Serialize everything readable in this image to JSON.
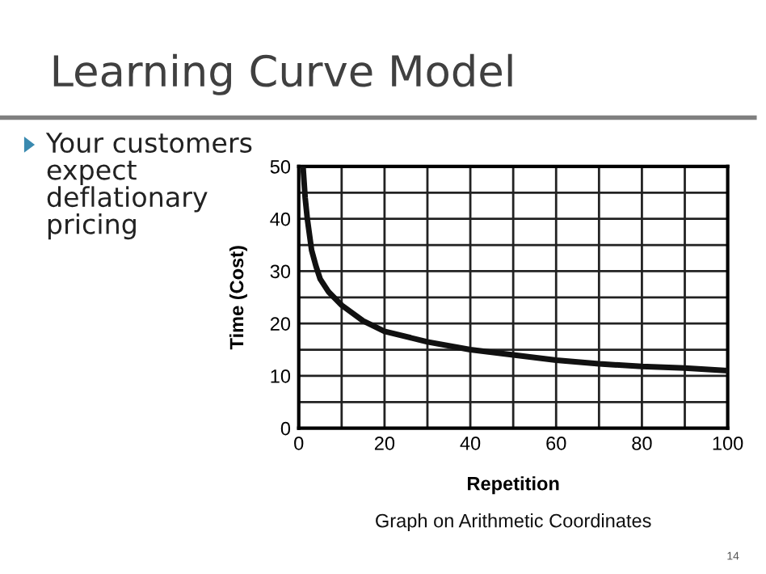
{
  "chart_data": {
    "type": "line",
    "title": "Learning Curve Model",
    "xlabel": "Repetition",
    "ylabel": "Time (Cost)",
    "annotations": [
      "Your customers expect deflationary pricing",
      "Graph on Arithmetic Coordinates",
      "14"
    ],
    "x": [
      1,
      1.5,
      2,
      3,
      4,
      5,
      7,
      10,
      15,
      20,
      30,
      40,
      50,
      60,
      70,
      80,
      90,
      100
    ],
    "series": [
      {
        "color": "#111111",
        "values": [
          50,
          44,
          40,
          34,
          31,
          28.5,
          26,
          23.5,
          20.5,
          18.5,
          16.5,
          15,
          14,
          13,
          12.3,
          11.8,
          11.5,
          11
        ]
      }
    ],
    "xlim": [
      0,
      100
    ],
    "ylim": [
      0,
      50
    ],
    "xticks": [
      0,
      {
        "value": 10,
        "label": null
      },
      20,
      {
        "value": 30,
        "label": null
      },
      40,
      {
        "value": 50,
        "label": null
      },
      60,
      {
        "value": 70,
        "label": null
      },
      80,
      {
        "value": 90,
        "label": null
      },
      100
    ],
    "yticks": [
      0,
      {
        "value": 5,
        "label": null
      },
      10,
      {
        "value": 15,
        "label": null
      },
      20,
      {
        "value": 25,
        "label": null
      },
      30,
      {
        "value": 35,
        "label": null
      },
      40,
      {
        "value": 45,
        "label": null
      },
      50
    ],
    "grid": true,
    "legend": false,
    "marker": "none",
    "line_style": "solid"
  }
}
